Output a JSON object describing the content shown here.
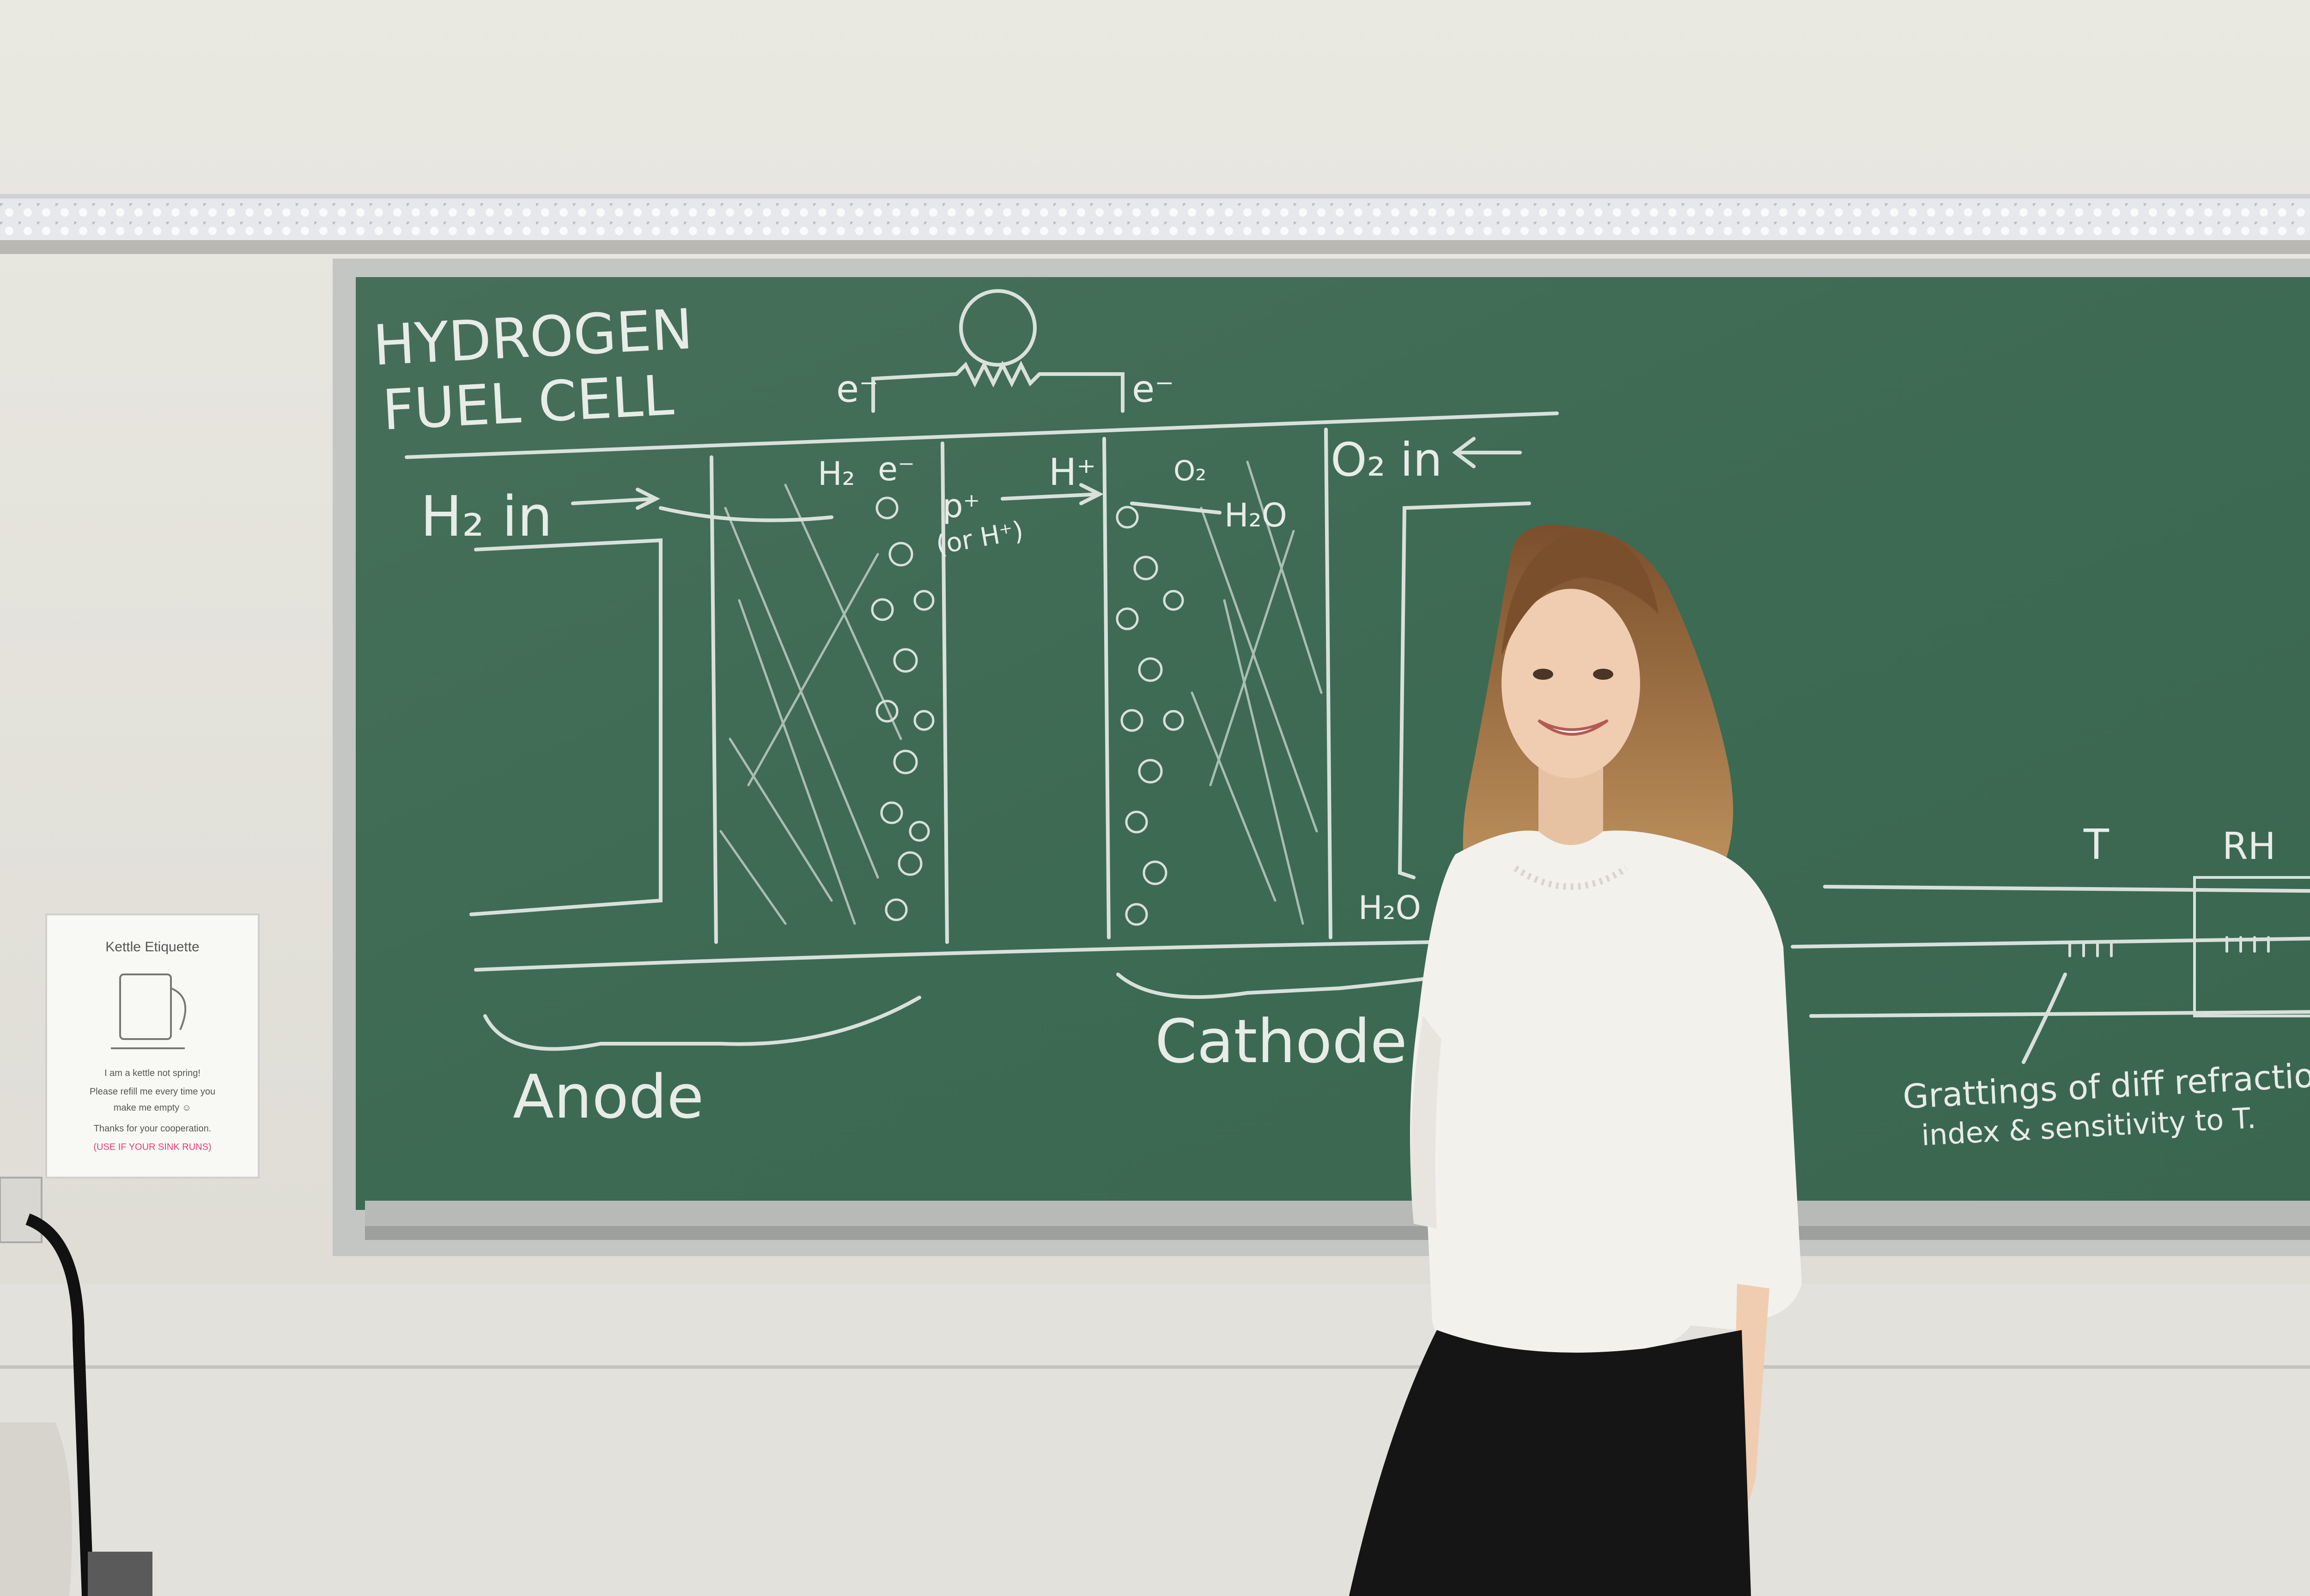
{
  "colors": {
    "wall": "#e4e3dd",
    "board": "#3f6e57",
    "board_frame": "#c9cbc8",
    "chalk": "#e8ece6",
    "sweater": "#f3f1ec",
    "pants": "#151515",
    "hair": "#9a6a3c",
    "pink_note": "#e0407a"
  },
  "board": {
    "title_line1": "HYDROGEN",
    "title_line2": "FUEL CELL",
    "electron_left": "e⁻",
    "electron_right": "e⁻",
    "h2_in": "H₂ in",
    "o2_in": "O₂ in",
    "h2_label": "H₂",
    "e_label": "e⁻",
    "p_label": "p⁺",
    "or_h": "(or H⁺)",
    "h_plus": "H⁺",
    "o2_label": "O₂",
    "h2o_label": "H₂O",
    "h2o_out": "H₂O",
    "anode": "Anode",
    "cathode": "Cathode",
    "t_label": "T",
    "rh_label": "RH",
    "gratings_line1": "Grattings of diff refraction",
    "gratings_line2": "index & sensitivity to T."
  },
  "note": {
    "title": "Kettle Etiquette",
    "line1": "I am a kettle not spring!",
    "line2": "Please refill me every time you",
    "line3": "make me empty ☺",
    "line4": "Thanks for your cooperation.",
    "line5": "(USE IF YOUR SINK RUNS)"
  }
}
